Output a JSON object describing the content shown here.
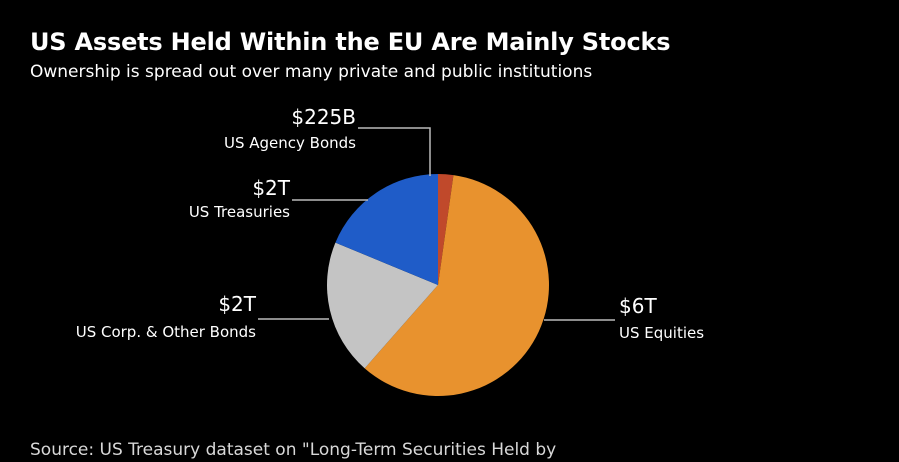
{
  "header": {
    "title": "US Assets Held Within the EU Are Mainly Stocks",
    "subtitle": "Ownership is spread out over many private and public institutions"
  },
  "footer": {
    "source": "Source: US Treasury dataset on \"Long-Term Securities Held by"
  },
  "chart_data": {
    "type": "pie",
    "title": "US Assets Held Within the EU Are Mainly Stocks",
    "subtitle": "Ownership is spread out over many private and public institutions",
    "slices": [
      {
        "key": "agency",
        "name": "US Agency Bonds",
        "value": 0.225,
        "display": "$225B",
        "color": "#c0492b"
      },
      {
        "key": "equities",
        "name": "US Equities",
        "value": 6,
        "display": "$6T",
        "color": "#e8922e"
      },
      {
        "key": "corp",
        "name": "US Corp. & Other Bonds",
        "value": 2,
        "display": "$2T",
        "color": "#c4c4c4"
      },
      {
        "key": "treasuries",
        "name": "US Treasuries",
        "value": 1.9,
        "display": "$2T",
        "color": "#1f5cc8"
      }
    ],
    "unit": "USD"
  }
}
